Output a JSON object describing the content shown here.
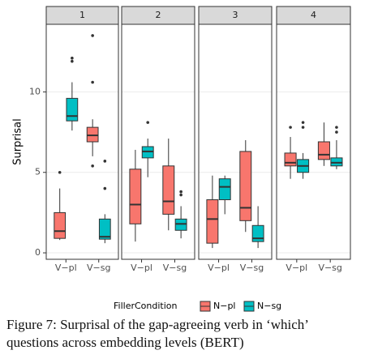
{
  "chart_data": {
    "type": "boxplot",
    "y_label": "Surprisal",
    "facets": [
      "1",
      "2",
      "3",
      "4"
    ],
    "categories": [
      "V−pl",
      "V−sg"
    ],
    "legend_title": "FillerCondition",
    "ylim": [
      -0.4,
      14.2
    ],
    "yticks": [
      0,
      5,
      10
    ],
    "grid": true,
    "series": [
      {
        "name": "N−pl",
        "color": "#F8766D",
        "panels": [
          [
            {
              "min": 0.8,
              "q1": 0.9,
              "median": 1.35,
              "q3": 2.5,
              "max": 4.0,
              "outliers": [
                5.0
              ]
            },
            {
              "min": 6.0,
              "q1": 6.9,
              "median": 7.3,
              "q3": 7.8,
              "max": 8.3,
              "outliers": [
                10.6,
                13.5,
                5.4
              ]
            }
          ],
          [
            {
              "min": 0.7,
              "q1": 1.8,
              "median": 3.0,
              "q3": 5.2,
              "max": 6.4,
              "outliers": []
            },
            {
              "min": 1.4,
              "q1": 2.4,
              "median": 3.2,
              "q3": 5.4,
              "max": 7.1,
              "outliers": []
            }
          ],
          [
            {
              "min": 0.3,
              "q1": 0.6,
              "median": 2.1,
              "q3": 3.3,
              "max": 4.8,
              "outliers": []
            },
            {
              "min": 1.3,
              "q1": 2.0,
              "median": 2.8,
              "q3": 6.3,
              "max": 7.0,
              "outliers": []
            }
          ],
          [
            {
              "min": 4.6,
              "q1": 5.4,
              "median": 5.6,
              "q3": 6.2,
              "max": 7.2,
              "outliers": [
                7.8
              ]
            },
            {
              "min": 5.4,
              "q1": 5.8,
              "median": 6.1,
              "q3": 6.9,
              "max": 8.1,
              "outliers": []
            }
          ]
        ]
      },
      {
        "name": "N−sg",
        "color": "#00BFC4",
        "panels": [
          [
            {
              "min": 7.6,
              "q1": 8.2,
              "median": 8.5,
              "q3": 9.6,
              "max": 10.6,
              "outliers": [
                11.9,
                12.1
              ]
            },
            {
              "min": 0.6,
              "q1": 0.85,
              "median": 1.0,
              "q3": 2.1,
              "max": 2.4,
              "outliers": [
                4.0,
                5.7
              ]
            }
          ],
          [
            {
              "min": 4.7,
              "q1": 5.9,
              "median": 6.3,
              "q3": 6.6,
              "max": 7.1,
              "outliers": [
                8.1
              ]
            },
            {
              "min": 0.9,
              "q1": 1.4,
              "median": 1.8,
              "q3": 2.1,
              "max": 2.9,
              "outliers": [
                3.6,
                3.8
              ]
            }
          ],
          [
            {
              "min": 2.4,
              "q1": 3.3,
              "median": 4.1,
              "q3": 4.6,
              "max": 4.8,
              "outliers": []
            },
            {
              "min": 0.3,
              "q1": 0.7,
              "median": 0.9,
              "q3": 1.7,
              "max": 2.9,
              "outliers": []
            }
          ],
          [
            {
              "min": 4.6,
              "q1": 5.0,
              "median": 5.4,
              "q3": 5.8,
              "max": 6.2,
              "outliers": [
                7.8,
                8.1
              ]
            },
            {
              "min": 5.2,
              "q1": 5.4,
              "median": 5.6,
              "q3": 5.9,
              "max": 7.0,
              "outliers": [
                7.5,
                7.8
              ]
            }
          ]
        ]
      }
    ]
  },
  "caption": {
    "lines": [
      "Figure 7: Surprisal of the gap-agreeing verb in ‘which’",
      "questions across embedding levels (BERT)"
    ]
  }
}
